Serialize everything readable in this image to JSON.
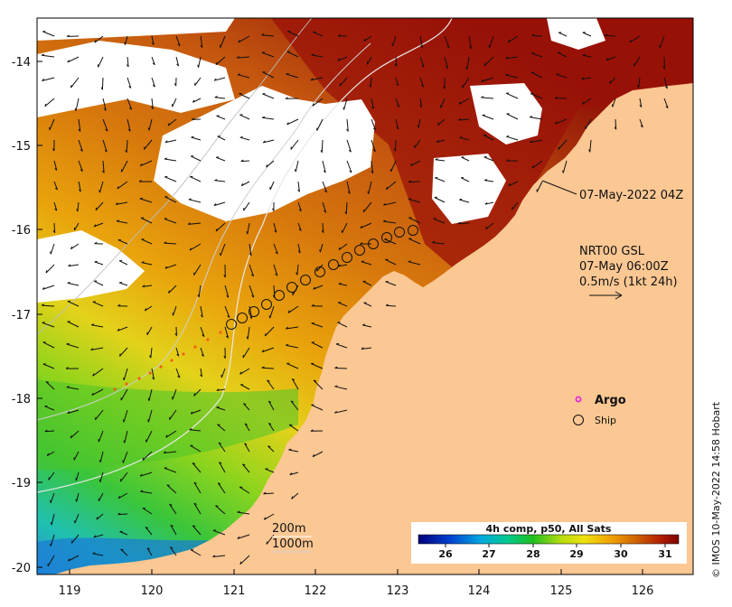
{
  "map": {
    "y_ticks": [
      "-14",
      "-15",
      "-16",
      "-17",
      "-18",
      "-19",
      "-20"
    ],
    "x_ticks": [
      "119",
      "120",
      "121",
      "122",
      "123",
      "124",
      "125",
      "126"
    ],
    "composite_time": "07-May-2022 04Z",
    "current_label_line1": "NRT00 GSL",
    "current_label_line2": "07-May 06:00Z",
    "current_label_line3": "0.5m/s (1kt 24h)",
    "legend_argo": "Argo",
    "legend_ship": "Ship",
    "depth_200": "200m",
    "depth_1000": "1000m",
    "colorbar_title": "4h comp, p50, All Sats",
    "colorbar_ticks": [
      "26",
      "27",
      "28",
      "29",
      "30",
      "31"
    ],
    "credit": "© IMOS 10-May-2022 14:58 Hobart"
  },
  "colors": {
    "land": "#fbc793",
    "cloud": "#ffffff",
    "sst_hot": "#9b1208",
    "sst_warm": "#c9550f",
    "sst_mid": "#e1900a",
    "sst_cool": "#f0c21a",
    "sst_green": "#79d21c",
    "sst_blue": "#1a7ad6",
    "argo": "#e020e0"
  }
}
